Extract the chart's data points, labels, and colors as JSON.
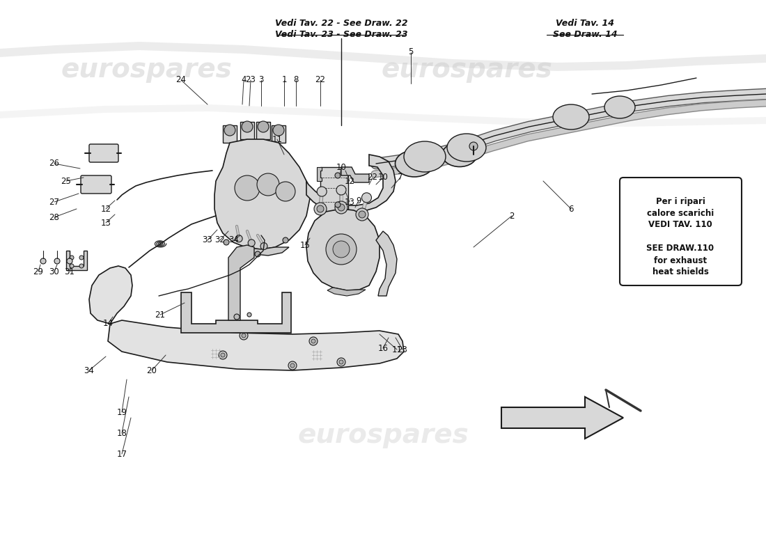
{
  "bg_color": "#ffffff",
  "watermark1": "eurospares",
  "watermark2": "eurospares",
  "ref_box_text": "Per i ripari\ncalore scarichi\nVEDI TAV. 110\n\nSEE DRAW.110\nfor exhaust\nheat shields",
  "ref_top_left_line1": "Vedi Tav. 22 - See Draw. 22",
  "ref_top_left_line2": "Vedi Tav. 23 - See Draw. 23",
  "ref_top_right_line1": "Vedi Tav. 14",
  "ref_top_right_line2": "See Draw. 14",
  "line_color": "#1a1a1a",
  "fill_light": "#e8e8e8",
  "fill_mid": "#d0d0d0",
  "fill_dark": "#b0b0b0",
  "watermark_color": "#c8c8c8"
}
